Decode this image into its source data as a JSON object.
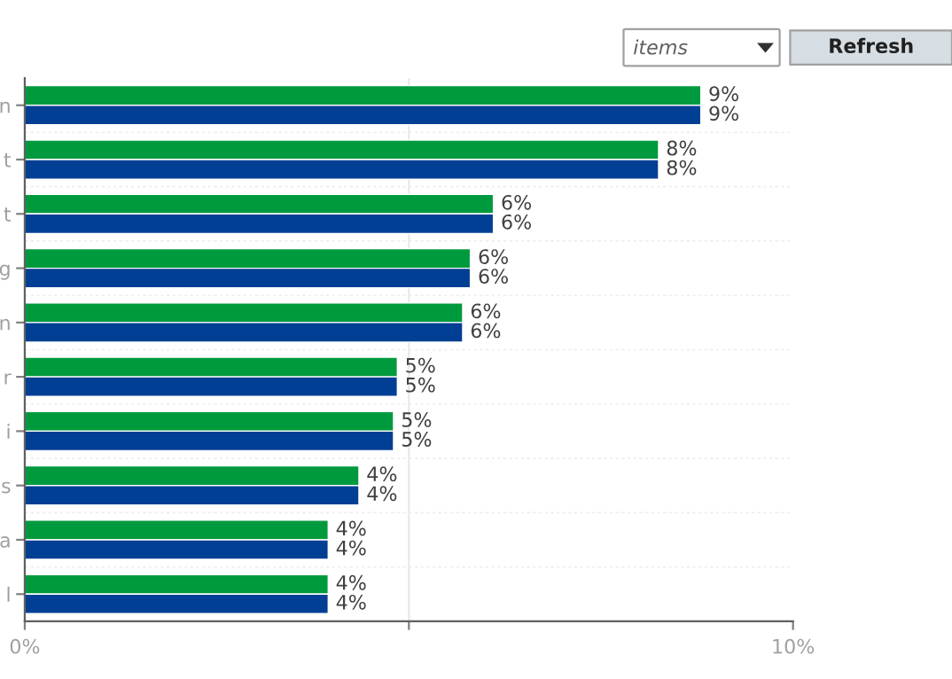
{
  "chart_data": {
    "type": "bar",
    "orientation": "horizontal",
    "categories": [
      "n",
      "t",
      "t",
      "g",
      "n",
      "r",
      "i",
      "s",
      "a",
      "l"
    ],
    "series": [
      {
        "color": "#009a3e",
        "values": [
          8.8,
          8.25,
          6.1,
          5.8,
          5.7,
          4.85,
          4.8,
          4.35,
          3.95,
          3.95
        ],
        "value_labels": [
          "9%",
          "8%",
          "6%",
          "6%",
          "6%",
          "5%",
          "5%",
          "4%",
          "4%",
          "4%"
        ]
      },
      {
        "color": "#003f94",
        "values": [
          8.8,
          8.25,
          6.1,
          5.8,
          5.7,
          4.85,
          4.8,
          4.35,
          3.95,
          3.95
        ],
        "value_labels": [
          "9%",
          "8%",
          "6%",
          "6%",
          "6%",
          "5%",
          "5%",
          "4%",
          "4%",
          "4%"
        ]
      }
    ],
    "xlim": [
      0,
      10
    ],
    "xticks": [
      {
        "value": 0,
        "label": "0%"
      },
      {
        "value": 5,
        "label": null
      },
      {
        "value": 10,
        "label": "10%"
      }
    ],
    "ref_lines": [
      {
        "axis": "x",
        "value": 5,
        "color": "#e8e8e8"
      }
    ],
    "annotations": [
      "items",
      "Refresh"
    ]
  }
}
